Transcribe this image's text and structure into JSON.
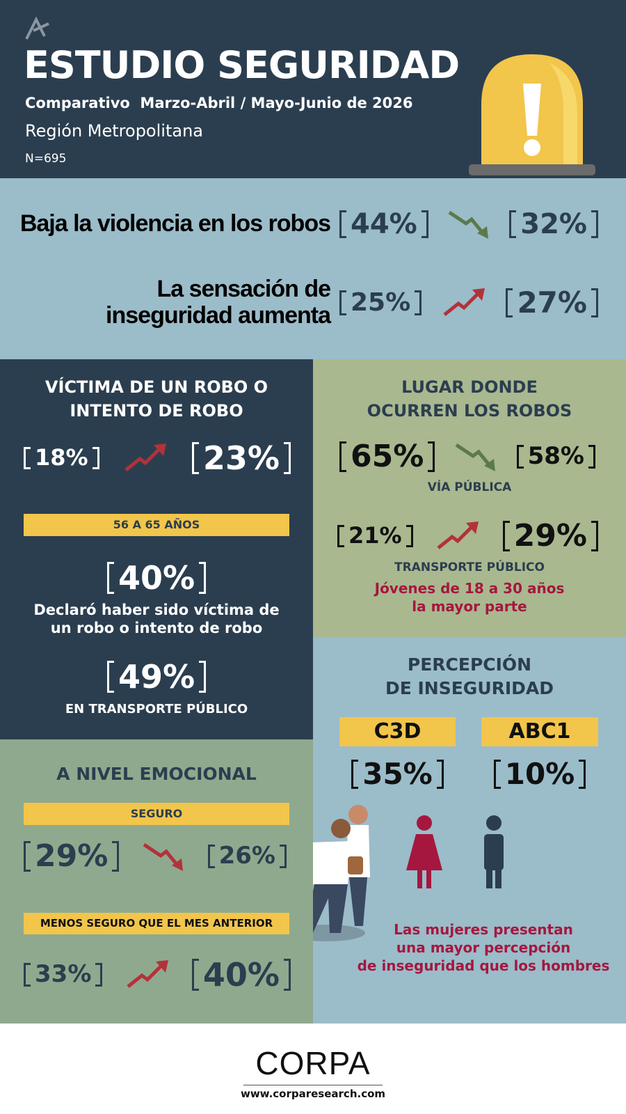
{
  "header": {
    "title": "ESTUDIO SEGURIDAD",
    "subtitle": "Comparativo  Marzo-Abril / Mayo-Junio de 2026",
    "region": "Región Metropolitana",
    "sample": "N=695"
  },
  "highlights": [
    {
      "label_lines": [
        "Baja la violencia en los robos"
      ],
      "before": "44%",
      "after": "32%"
    },
    {
      "label_lines": [
        "La sensación de",
        "inseguridad aumenta"
      ],
      "before": "25%",
      "after": "27%"
    }
  ],
  "victims": {
    "title_lines": [
      "VÍCTIMA DE UN ROBO O",
      "INTENTO DE ROBO"
    ],
    "before": "18%",
    "after": "23%",
    "age_group": "56 A 65 AÑOS",
    "age_value": "40%",
    "age_note_lines": [
      "Declaró haber sido víctima de",
      "un robo o intento de robo"
    ],
    "transport_value": "49%",
    "transport_label": "EN TRANSPORTE PÚBLICO"
  },
  "places": {
    "title_lines": [
      "LUGAR DONDE",
      "OCURREN LOS ROBOS"
    ],
    "rows": [
      {
        "before": "65%",
        "after": "58%",
        "label": "VÍA PÚBLICA"
      },
      {
        "before": "21%",
        "after": "29%",
        "label": "TRANSPORTE PÚBLICO"
      }
    ],
    "note_lines": [
      "Jóvenes de 18 a 30 años",
      "la mayor parte"
    ]
  },
  "perception": {
    "title_lines": [
      "PERCEPCIÓN",
      "DE INSEGURIDAD"
    ],
    "groups": [
      {
        "name": "C3D",
        "value": "35%"
      },
      {
        "name": "ABC1",
        "value": "10%"
      }
    ],
    "note_lines": [
      "Las mujeres presentan",
      "una mayor percepción",
      "de inseguridad que los hombres"
    ]
  },
  "emotional": {
    "title": "A NIVEL EMOCIONAL",
    "items": [
      {
        "label": "SEGURO",
        "before": "29%",
        "after": "26%"
      },
      {
        "label": "MENOS SEGURO QUE EL MES ANTERIOR",
        "before": "33%",
        "after": "40%"
      }
    ]
  },
  "footer": {
    "brand": "CORPA",
    "url": "www.corparesearch.com"
  }
}
